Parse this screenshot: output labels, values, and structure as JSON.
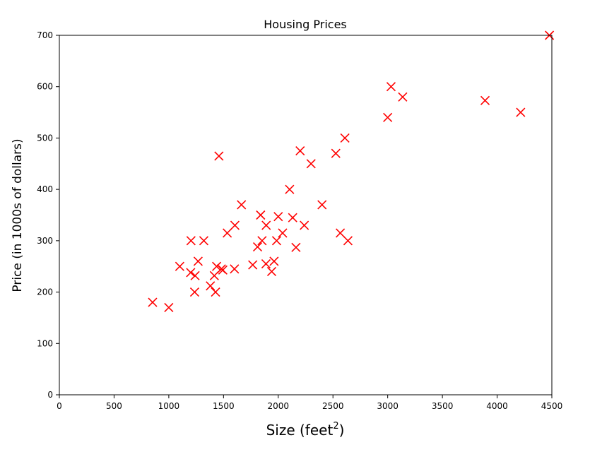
{
  "chart_data": {
    "type": "scatter",
    "title": "Housing Prices",
    "xlabel": "Size (feet",
    "xlabel_superscript": "2",
    "xlabel_suffix": ")",
    "ylabel": "Price (in 1000s of dollars)",
    "xlim": [
      0,
      4500
    ],
    "ylim": [
      0,
      700
    ],
    "x_ticks": [
      0,
      500,
      1000,
      1500,
      2000,
      2500,
      3000,
      3500,
      4000,
      4500
    ],
    "y_ticks": [
      0,
      100,
      200,
      300,
      400,
      500,
      600,
      700
    ],
    "marker": "x",
    "color": "#ff0000",
    "grid": false,
    "points": [
      [
        852,
        180
      ],
      [
        1000,
        170
      ],
      [
        1100,
        250
      ],
      [
        1200,
        238
      ],
      [
        1203,
        300
      ],
      [
        1236,
        200
      ],
      [
        1240,
        232
      ],
      [
        1268,
        260
      ],
      [
        1320,
        300
      ],
      [
        1380,
        212
      ],
      [
        1416,
        232
      ],
      [
        1427,
        200
      ],
      [
        1437,
        250
      ],
      [
        1458,
        465
      ],
      [
        1480,
        245
      ],
      [
        1494,
        243
      ],
      [
        1534,
        315
      ],
      [
        1600,
        245
      ],
      [
        1604,
        330
      ],
      [
        1664,
        370
      ],
      [
        1767,
        253
      ],
      [
        1811,
        288
      ],
      [
        1839,
        350
      ],
      [
        1852,
        300
      ],
      [
        1888,
        255
      ],
      [
        1890,
        330
      ],
      [
        1940,
        240
      ],
      [
        1962,
        260
      ],
      [
        1985,
        300
      ],
      [
        2000,
        347
      ],
      [
        2040,
        315
      ],
      [
        2104,
        400
      ],
      [
        2132,
        345
      ],
      [
        2162,
        287
      ],
      [
        2200,
        475
      ],
      [
        2238,
        330
      ],
      [
        2300,
        450
      ],
      [
        2400,
        370
      ],
      [
        2526,
        470
      ],
      [
        2567,
        315
      ],
      [
        2609,
        500
      ],
      [
        2637,
        300
      ],
      [
        3000,
        540
      ],
      [
        3031,
        600
      ],
      [
        3137,
        580
      ],
      [
        3890,
        573
      ],
      [
        4215,
        550
      ],
      [
        4478,
        700
      ]
    ]
  }
}
